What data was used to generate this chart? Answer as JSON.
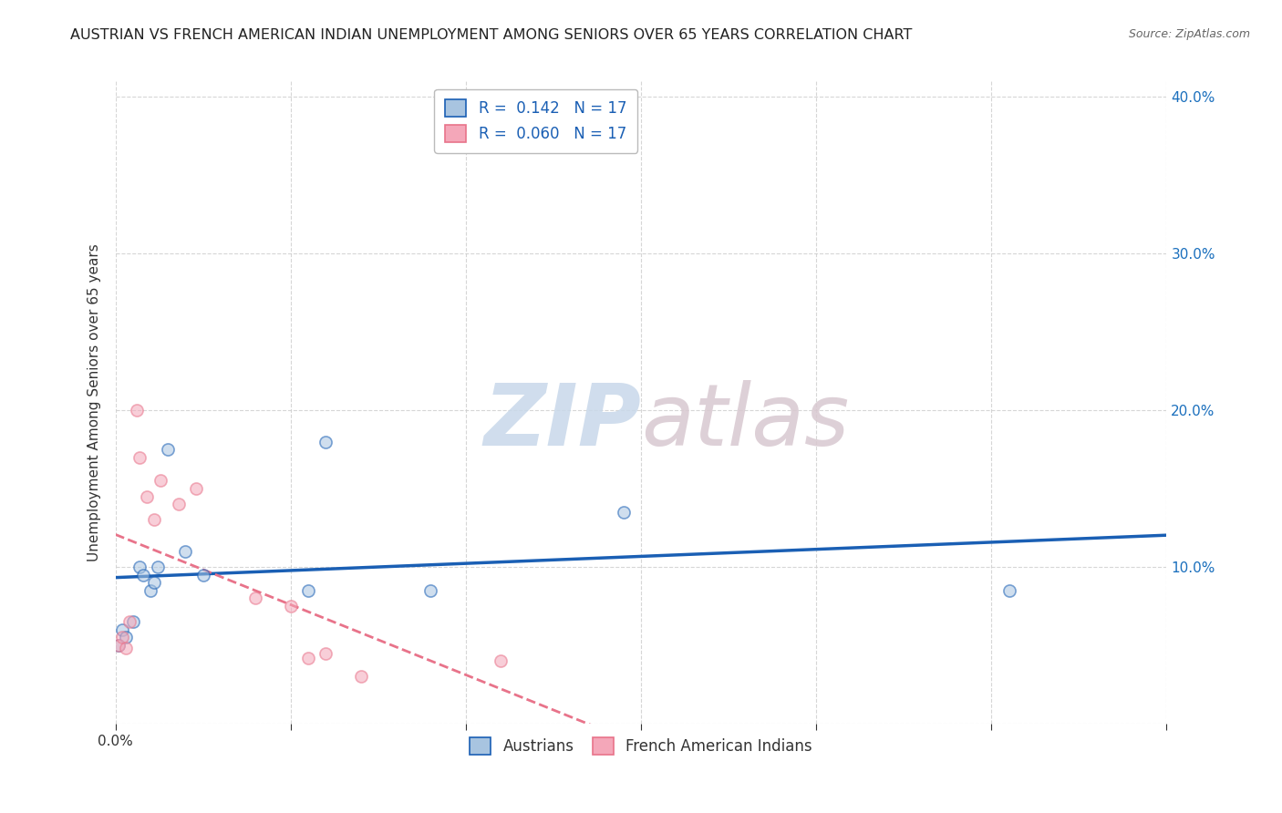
{
  "title": "AUSTRIAN VS FRENCH AMERICAN INDIAN UNEMPLOYMENT AMONG SENIORS OVER 65 YEARS CORRELATION CHART",
  "source": "Source: ZipAtlas.com",
  "ylabel": "Unemployment Among Seniors over 65 years",
  "xlim": [
    0.0,
    0.3
  ],
  "ylim": [
    0.0,
    0.41
  ],
  "watermark_zip": "ZIP",
  "watermark_atlas": "atlas",
  "legend_R_austrians": "0.142",
  "legend_N_austrians": "17",
  "legend_R_french": "0.060",
  "legend_N_french": "17",
  "austrians_color": "#a8c4e0",
  "french_color": "#f4a7b9",
  "line_austrians_color": "#1a5fb4",
  "line_french_color": "#e8738a",
  "austrians_x": [
    0.001,
    0.002,
    0.003,
    0.005,
    0.007,
    0.008,
    0.01,
    0.011,
    0.012,
    0.015,
    0.02,
    0.025,
    0.055,
    0.06,
    0.09,
    0.145,
    0.255
  ],
  "austrians_y": [
    0.05,
    0.06,
    0.055,
    0.065,
    0.1,
    0.095,
    0.085,
    0.09,
    0.1,
    0.175,
    0.11,
    0.095,
    0.085,
    0.18,
    0.085,
    0.135,
    0.085
  ],
  "french_x": [
    0.001,
    0.002,
    0.003,
    0.004,
    0.006,
    0.007,
    0.009,
    0.011,
    0.013,
    0.018,
    0.023,
    0.04,
    0.05,
    0.055,
    0.06,
    0.07,
    0.11
  ],
  "french_y": [
    0.05,
    0.055,
    0.048,
    0.065,
    0.2,
    0.17,
    0.145,
    0.13,
    0.155,
    0.14,
    0.15,
    0.08,
    0.075,
    0.042,
    0.045,
    0.03,
    0.04
  ],
  "background_color": "#ffffff",
  "grid_color": "#cccccc",
  "marker_size": 90,
  "marker_alpha": 0.55
}
